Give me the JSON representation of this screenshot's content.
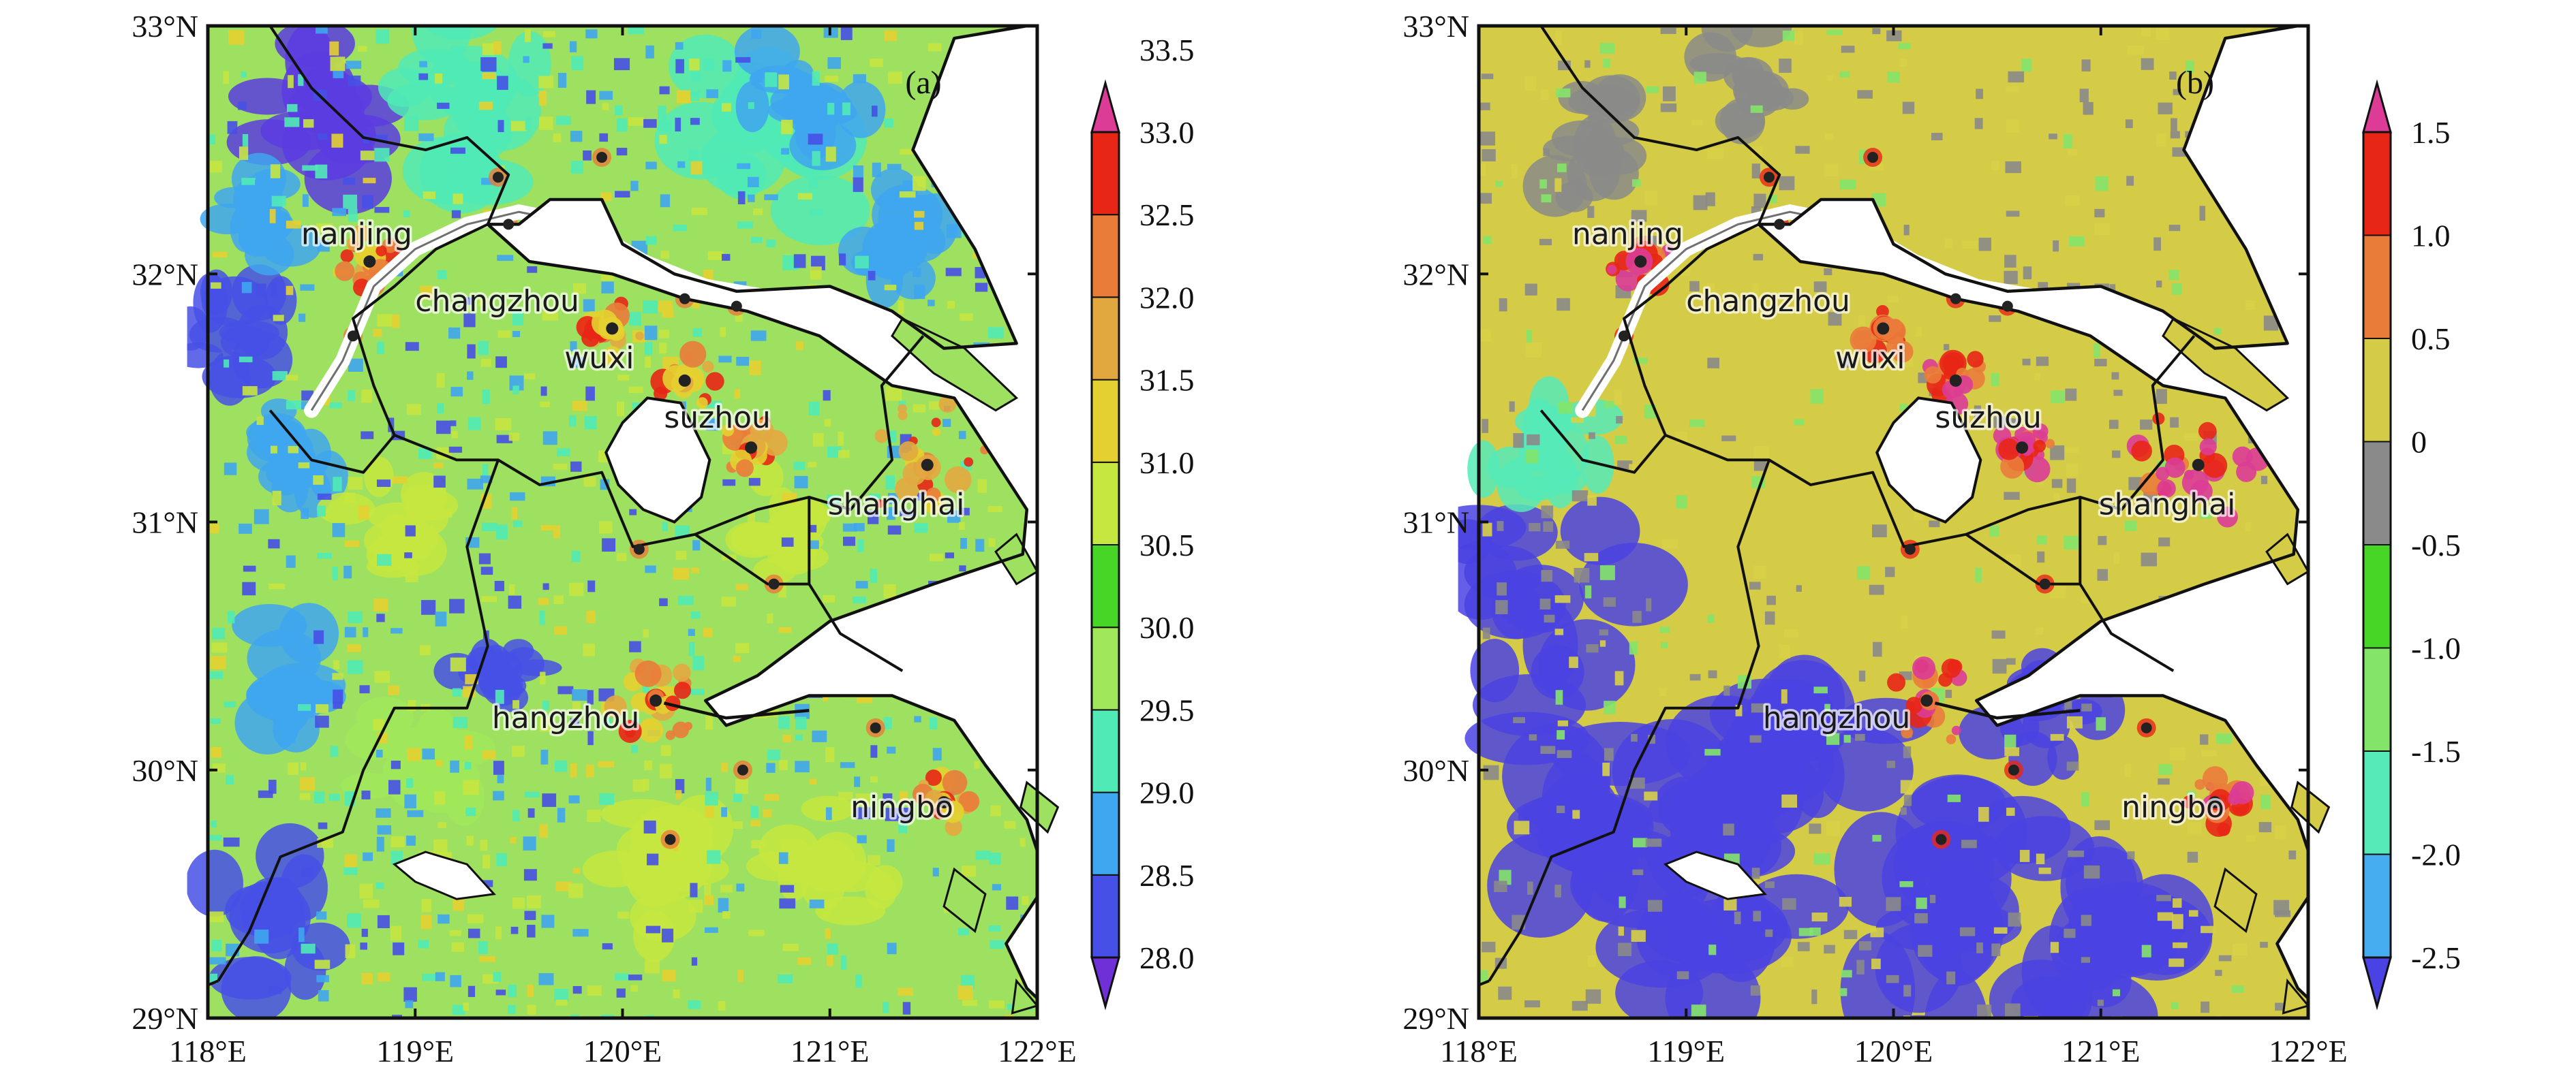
{
  "panels": [
    {
      "id": "a",
      "label": "(a)",
      "colorbar": {
        "values": [
          "28.0",
          "28.5",
          "29.0",
          "29.5",
          "30.0",
          "30.5",
          "31.0",
          "31.5",
          "32.0",
          "32.5",
          "33.0",
          "33.5"
        ],
        "colors": [
          "#7030d8",
          "#4650e6",
          "#3fa6f0",
          "#50eab6",
          "#a0e85a",
          "#48d626",
          "#c6e640",
          "#e4d030",
          "#e2a840",
          "#ea7c3a",
          "#e82616",
          "#dc3c96"
        ]
      },
      "base_color": "#9ee060",
      "noise": [
        {
          "color": "#4650e6",
          "density": 0.05
        },
        {
          "color": "#3fa6f0",
          "density": 0.05
        },
        {
          "color": "#50eab6",
          "density": 0.06
        },
        {
          "color": "#c6e640",
          "density": 0.07
        },
        {
          "color": "#e4d030",
          "density": 0.03
        }
      ],
      "blobs": [
        {
          "lon": 118.6,
          "lat": 32.65,
          "r": 0.38,
          "color": "#5a3ce0"
        },
        {
          "lon": 118.2,
          "lat": 31.8,
          "r": 0.3,
          "color": "#4650e6"
        },
        {
          "lon": 118.3,
          "lat": 32.2,
          "r": 0.25,
          "color": "#3fa6f0"
        },
        {
          "lon": 118.4,
          "lat": 31.3,
          "r": 0.25,
          "color": "#3fa6f0"
        },
        {
          "lon": 119.3,
          "lat": 32.7,
          "r": 0.4,
          "color": "#50eab6"
        },
        {
          "lon": 120.6,
          "lat": 32.5,
          "r": 0.45,
          "color": "#50eab6"
        },
        {
          "lon": 120.9,
          "lat": 32.7,
          "r": 0.3,
          "color": "#3fa6f0"
        },
        {
          "lon": 121.3,
          "lat": 32.1,
          "r": 0.3,
          "color": "#3fa6f0"
        },
        {
          "lon": 118.4,
          "lat": 30.3,
          "r": 0.35,
          "color": "#3fa6f0"
        },
        {
          "lon": 118.3,
          "lat": 29.4,
          "r": 0.35,
          "color": "#4650e6"
        },
        {
          "lon": 119.4,
          "lat": 30.4,
          "r": 0.2,
          "color": "#4650e6"
        },
        {
          "lon": 118.9,
          "lat": 31.0,
          "r": 0.25,
          "color": "#c6e640"
        },
        {
          "lon": 120.2,
          "lat": 29.6,
          "r": 0.35,
          "color": "#c6e640"
        },
        {
          "lon": 121.0,
          "lat": 29.6,
          "r": 0.3,
          "color": "#c6e640"
        },
        {
          "lon": 120.8,
          "lat": 31.0,
          "r": 0.25,
          "color": "#c6e640"
        },
        {
          "lon": 119.0,
          "lat": 30.0,
          "r": 0.3,
          "color": "#a0e85a"
        }
      ],
      "hot_colors": [
        "#ea7c3a",
        "#e82616",
        "#e2a840",
        "#e4d030"
      ],
      "city_dot_color": "#222222",
      "city_ring": "#e82616"
    },
    {
      "id": "b",
      "label": "(b)",
      "colorbar": {
        "values": [
          "-2.5",
          "-2.0",
          "-1.5",
          "-1.0",
          "-0.5",
          "0",
          "0.5",
          "1.0",
          "1.5"
        ],
        "colors": [
          "#4a42e2",
          "#46aef0",
          "#56eab8",
          "#84e46a",
          "#48d626",
          "#8a8a8a",
          "#d4cc46",
          "#ea7c3a",
          "#e82616",
          "#dc3c96"
        ]
      },
      "base_color": "#d4cc46",
      "noise": [
        {
          "color": "#8a8a8a",
          "density": 0.07
        },
        {
          "color": "#84e46a",
          "density": 0.03
        },
        {
          "color": "#d8d046",
          "density": 0.04
        }
      ],
      "blobs": [
        {
          "lon": 118.5,
          "lat": 29.8,
          "r": 0.6,
          "color": "#4a42e2"
        },
        {
          "lon": 119.2,
          "lat": 29.5,
          "r": 0.6,
          "color": "#4a42e2"
        },
        {
          "lon": 119.6,
          "lat": 30.2,
          "r": 0.5,
          "color": "#4a42e2"
        },
        {
          "lon": 120.3,
          "lat": 29.4,
          "r": 0.6,
          "color": "#4a42e2"
        },
        {
          "lon": 121.0,
          "lat": 29.3,
          "r": 0.5,
          "color": "#4a42e2"
        },
        {
          "lon": 118.3,
          "lat": 30.7,
          "r": 0.45,
          "color": "#4a42e2"
        },
        {
          "lon": 120.7,
          "lat": 30.3,
          "r": 0.3,
          "color": "#4a42e2"
        },
        {
          "lon": 118.3,
          "lat": 31.3,
          "r": 0.3,
          "color": "#56eab8"
        },
        {
          "lon": 118.6,
          "lat": 32.5,
          "r": 0.3,
          "color": "#8a8a8a"
        },
        {
          "lon": 119.3,
          "lat": 32.8,
          "r": 0.25,
          "color": "#8a8a8a"
        },
        {
          "lon": 121.8,
          "lat": 32.8,
          "r": 0.2,
          "color": "#8a8a8a"
        }
      ],
      "hot_colors": [
        "#e82616",
        "#ea7c3a",
        "#dc3c96"
      ],
      "city_dot_color": "#222222",
      "city_ring": "#e82616"
    }
  ],
  "axes": {
    "x_ticks": [
      "118°E",
      "119°E",
      "120°E",
      "121°E",
      "122°E"
    ],
    "y_ticks": [
      "33°N",
      "32°N",
      "31°N",
      "30°N",
      "29°N"
    ]
  },
  "cities": [
    {
      "name": "nanjing",
      "lon": 118.78,
      "lat": 32.05,
      "lab_lon": 118.45,
      "lab_lat": 32.12
    },
    {
      "name": "changzhou",
      "lon": 119.95,
      "lat": 31.78,
      "lab_lon": 119.0,
      "lab_lat": 31.85
    },
    {
      "name": "wuxi",
      "lon": 120.3,
      "lat": 31.57,
      "lab_lon": 119.72,
      "lab_lat": 31.62
    },
    {
      "name": "suzhou",
      "lon": 120.62,
      "lat": 31.3,
      "lab_lon": 120.2,
      "lab_lat": 31.38
    },
    {
      "name": "shanghai",
      "lon": 121.47,
      "lat": 31.23,
      "lab_lon": 120.99,
      "lab_lat": 31.03
    },
    {
      "name": "hangzhou",
      "lon": 120.16,
      "lat": 30.28,
      "lab_lon": 119.37,
      "lab_lat": 30.17
    },
    {
      "name": "ningbo",
      "lon": 121.55,
      "lat": 29.87,
      "lab_lon": 121.1,
      "lab_lat": 29.81
    }
  ],
  "towns": [
    {
      "lon": 119.4,
      "lat": 32.39
    },
    {
      "lon": 119.9,
      "lat": 32.47
    },
    {
      "lon": 119.45,
      "lat": 32.2
    },
    {
      "lon": 120.3,
      "lat": 31.9
    },
    {
      "lon": 120.55,
      "lat": 31.87
    },
    {
      "lon": 120.08,
      "lat": 30.89
    },
    {
      "lon": 120.73,
      "lat": 30.75
    },
    {
      "lon": 121.22,
      "lat": 30.17
    },
    {
      "lon": 120.58,
      "lat": 30.0
    },
    {
      "lon": 120.23,
      "lat": 29.72
    },
    {
      "lon": 118.7,
      "lat": 31.75
    }
  ]
}
